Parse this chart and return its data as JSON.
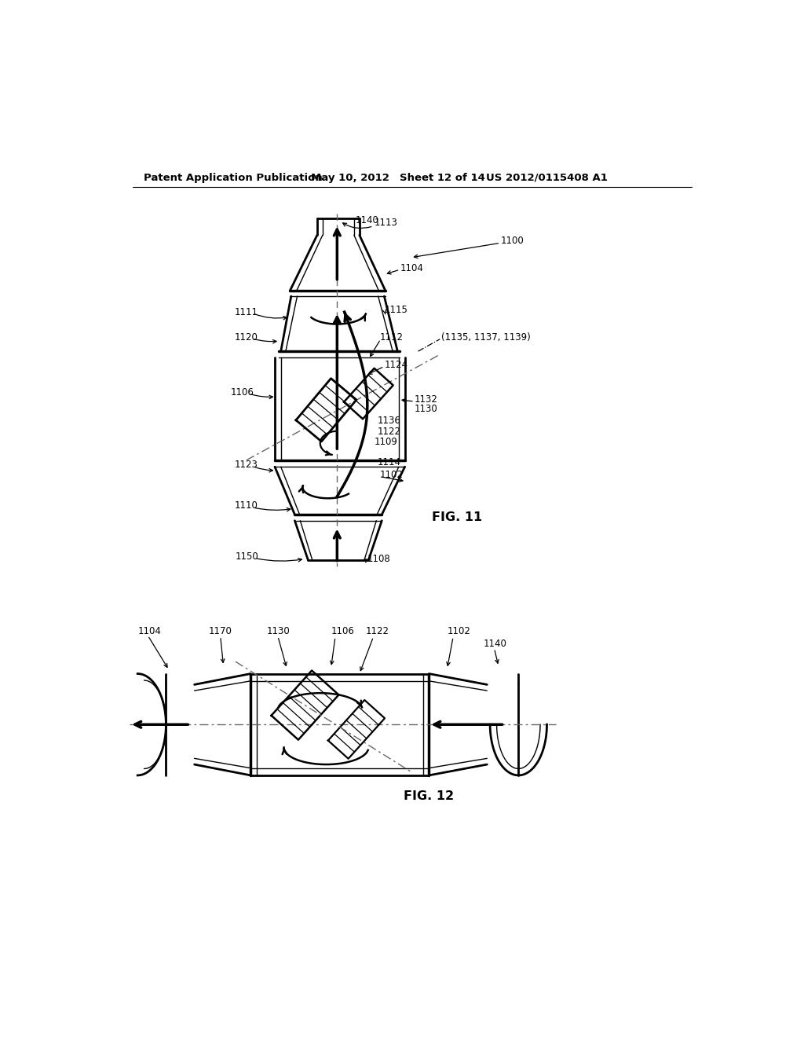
{
  "background_color": "#ffffff",
  "header_text": "Patent Application Publication",
  "header_date": "May 10, 2012",
  "header_sheet": "Sheet 12 of 14",
  "header_patent": "US 2012/0115408 A1",
  "fig11_label": "FIG. 11",
  "fig12_label": "FIG. 12",
  "line_color": "#000000",
  "label_color": "#000000",
  "label_fontsize": 8.5,
  "header_fontsize": 9.5
}
